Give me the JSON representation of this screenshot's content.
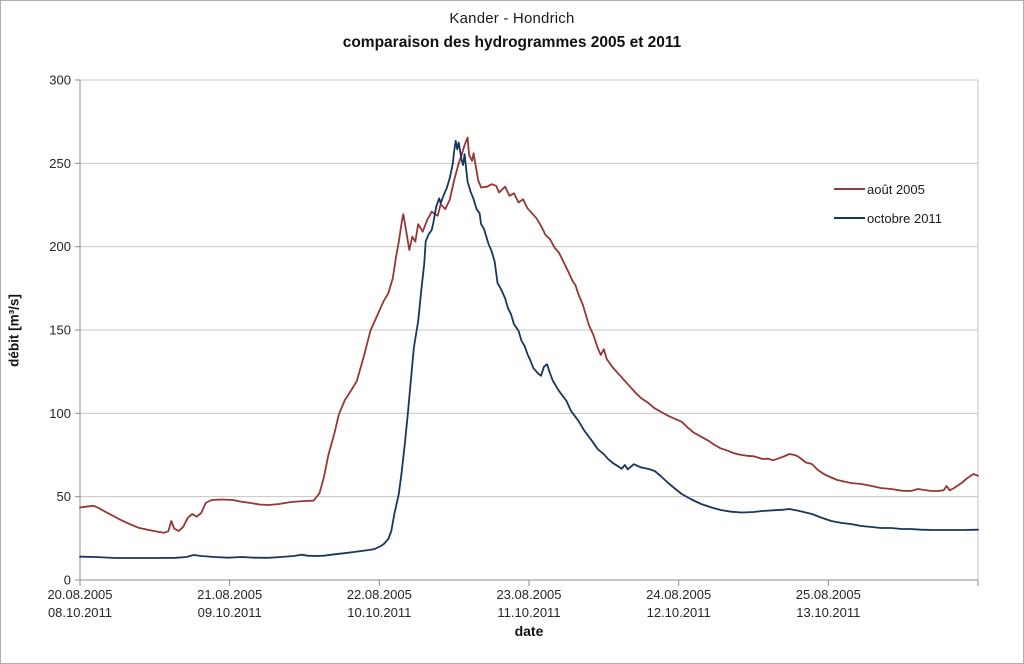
{
  "title": {
    "line1": "Kander - Hondrich",
    "line2": "comparaison des hydrogrammes 2005 et 2011"
  },
  "legend": {
    "position": "inside-right",
    "items": [
      {
        "label": "août 2005",
        "color": "#953735"
      },
      {
        "label": "octobre 2011",
        "color": "#17375D"
      }
    ]
  },
  "colors": {
    "gridline": "#c6c6c6",
    "axis": "#8c8c8c",
    "plot_border": "#c6c6c6",
    "text": "#262626",
    "background": "#ffffff",
    "series_red": "#953735",
    "series_blue": "#17375D"
  },
  "chart_data": {
    "type": "line",
    "title": "Kander - Hondrich",
    "subtitle": "comparaison des hydrogrammes 2005 et 2011",
    "xlabel": "date",
    "ylabel": "débit [m³/s]",
    "ylim": [
      0,
      300
    ],
    "yticks": [
      0,
      50,
      100,
      150,
      200,
      250,
      300
    ],
    "grid": "horizontal",
    "legend_position": "inside-right",
    "xlim_days": [
      0,
      6
    ],
    "x_unit": "days from first tick (dual date axis: 2005 over 2011)",
    "xticks": [
      {
        "day": 0,
        "label_2005": "20.08.2005",
        "label_2011": "08.10.2011"
      },
      {
        "day": 1,
        "label_2005": "21.08.2005",
        "label_2011": "09.10.2011"
      },
      {
        "day": 2,
        "label_2005": "22.08.2005",
        "label_2011": "10.10.2011"
      },
      {
        "day": 3,
        "label_2005": "23.08.2005",
        "label_2011": "11.10.2011"
      },
      {
        "day": 4,
        "label_2005": "24.08.2005",
        "label_2011": "12.10.2011"
      },
      {
        "day": 5,
        "label_2005": "25.08.2005",
        "label_2011": "13.10.2011"
      }
    ],
    "series": [
      {
        "name": "août 2005",
        "color": "#953735",
        "unit": "m³/s",
        "points": [
          [
            0.0,
            43.5
          ],
          [
            0.04,
            44.0
          ],
          [
            0.09,
            44.5
          ],
          [
            0.12,
            43.4
          ],
          [
            0.16,
            41.4
          ],
          [
            0.2,
            39.5
          ],
          [
            0.26,
            36.6
          ],
          [
            0.33,
            33.6
          ],
          [
            0.39,
            31.4
          ],
          [
            0.46,
            30.0
          ],
          [
            0.52,
            29.0
          ],
          [
            0.56,
            28.3
          ],
          [
            0.59,
            29.2
          ],
          [
            0.61,
            35.4
          ],
          [
            0.63,
            30.8
          ],
          [
            0.66,
            29.4
          ],
          [
            0.69,
            32.0
          ],
          [
            0.72,
            37.4
          ],
          [
            0.75,
            39.6
          ],
          [
            0.78,
            38.0
          ],
          [
            0.81,
            40.2
          ],
          [
            0.84,
            46.2
          ],
          [
            0.88,
            48.0
          ],
          [
            0.95,
            48.3
          ],
          [
            1.02,
            48.0
          ],
          [
            1.08,
            47.0
          ],
          [
            1.14,
            46.2
          ],
          [
            1.2,
            45.3
          ],
          [
            1.26,
            45.0
          ],
          [
            1.33,
            45.6
          ],
          [
            1.41,
            46.8
          ],
          [
            1.5,
            47.4
          ],
          [
            1.56,
            47.6
          ],
          [
            1.6,
            52.0
          ],
          [
            1.63,
            62.0
          ],
          [
            1.66,
            75.0
          ],
          [
            1.7,
            88.0
          ],
          [
            1.73,
            99.5
          ],
          [
            1.77,
            108.0
          ],
          [
            1.81,
            113.5
          ],
          [
            1.85,
            119.5
          ],
          [
            1.9,
            135.5
          ],
          [
            1.94,
            149.5
          ],
          [
            1.99,
            159.5
          ],
          [
            2.03,
            167.5
          ],
          [
            2.06,
            172.0
          ],
          [
            2.09,
            181.0
          ],
          [
            2.11,
            193.0
          ],
          [
            2.13,
            203.0
          ],
          [
            2.15,
            215.0
          ],
          [
            2.16,
            219.5
          ],
          [
            2.18,
            209.0
          ],
          [
            2.2,
            198.0
          ],
          [
            2.22,
            206.0
          ],
          [
            2.24,
            203.0
          ],
          [
            2.26,
            213.5
          ],
          [
            2.29,
            209.0
          ],
          [
            2.32,
            216.0
          ],
          [
            2.35,
            221.0
          ],
          [
            2.39,
            218.5
          ],
          [
            2.41,
            225.5
          ],
          [
            2.44,
            222.5
          ],
          [
            2.47,
            228.0
          ],
          [
            2.5,
            240.0
          ],
          [
            2.53,
            250.0
          ],
          [
            2.55,
            255.0
          ],
          [
            2.57,
            261.0
          ],
          [
            2.59,
            265.5
          ],
          [
            2.6,
            255.0
          ],
          [
            2.62,
            251.5
          ],
          [
            2.63,
            256.0
          ],
          [
            2.66,
            240.0
          ],
          [
            2.68,
            235.5
          ],
          [
            2.72,
            236.0
          ],
          [
            2.75,
            237.5
          ],
          [
            2.78,
            236.5
          ],
          [
            2.8,
            232.5
          ],
          [
            2.84,
            236.0
          ],
          [
            2.87,
            230.5
          ],
          [
            2.9,
            232.0
          ],
          [
            2.93,
            226.5
          ],
          [
            2.96,
            228.5
          ],
          [
            2.99,
            223.0
          ],
          [
            3.02,
            220.0
          ],
          [
            3.05,
            217.0
          ],
          [
            3.08,
            212.5
          ],
          [
            3.11,
            207.0
          ],
          [
            3.14,
            204.5
          ],
          [
            3.17,
            199.5
          ],
          [
            3.2,
            196.5
          ],
          [
            3.23,
            191.0
          ],
          [
            3.26,
            185.5
          ],
          [
            3.29,
            179.5
          ],
          [
            3.31,
            177.0
          ],
          [
            3.33,
            171.5
          ],
          [
            3.36,
            165.0
          ],
          [
            3.4,
            153.0
          ],
          [
            3.43,
            147.0
          ],
          [
            3.46,
            139.0
          ],
          [
            3.48,
            135.0
          ],
          [
            3.5,
            138.5
          ],
          [
            3.52,
            132.5
          ],
          [
            3.56,
            127.5
          ],
          [
            3.6,
            123.5
          ],
          [
            3.66,
            117.5
          ],
          [
            3.71,
            112.5
          ],
          [
            3.75,
            109.0
          ],
          [
            3.8,
            106.0
          ],
          [
            3.84,
            103.0
          ],
          [
            3.89,
            100.5
          ],
          [
            3.93,
            98.5
          ],
          [
            3.98,
            96.5
          ],
          [
            4.02,
            95.0
          ],
          [
            4.06,
            91.5
          ],
          [
            4.1,
            88.5
          ],
          [
            4.15,
            86.0
          ],
          [
            4.2,
            83.5
          ],
          [
            4.24,
            81.0
          ],
          [
            4.28,
            79.0
          ],
          [
            4.33,
            77.5
          ],
          [
            4.37,
            76.0
          ],
          [
            4.42,
            75.0
          ],
          [
            4.46,
            74.5
          ],
          [
            4.5,
            74.2
          ],
          [
            4.53,
            73.5
          ],
          [
            4.56,
            72.6
          ],
          [
            4.6,
            72.8
          ],
          [
            4.63,
            71.8
          ],
          [
            4.67,
            73.0
          ],
          [
            4.71,
            74.4
          ],
          [
            4.74,
            75.6
          ],
          [
            4.78,
            74.8
          ],
          [
            4.8,
            74.0
          ],
          [
            4.82,
            72.6
          ],
          [
            4.85,
            70.5
          ],
          [
            4.89,
            69.6
          ],
          [
            4.93,
            66.0
          ],
          [
            4.97,
            63.6
          ],
          [
            5.02,
            61.5
          ],
          [
            5.06,
            60.0
          ],
          [
            5.09,
            59.4
          ],
          [
            5.15,
            58.2
          ],
          [
            5.22,
            57.6
          ],
          [
            5.29,
            56.4
          ],
          [
            5.35,
            55.2
          ],
          [
            5.42,
            54.6
          ],
          [
            5.49,
            53.6
          ],
          [
            5.55,
            53.4
          ],
          [
            5.6,
            54.6
          ],
          [
            5.64,
            54.0
          ],
          [
            5.69,
            53.4
          ],
          [
            5.73,
            53.4
          ],
          [
            5.77,
            53.8
          ],
          [
            5.79,
            56.4
          ],
          [
            5.81,
            53.8
          ],
          [
            5.84,
            55.2
          ],
          [
            5.89,
            58.2
          ],
          [
            5.93,
            61.2
          ],
          [
            5.97,
            63.6
          ],
          [
            6.0,
            62.5
          ]
        ]
      },
      {
        "name": "octobre 2011",
        "color": "#17375D",
        "unit": "m³/s",
        "points": [
          [
            0.0,
            14.0
          ],
          [
            0.1,
            13.8
          ],
          [
            0.24,
            13.2
          ],
          [
            0.37,
            13.2
          ],
          [
            0.51,
            13.2
          ],
          [
            0.64,
            13.3
          ],
          [
            0.71,
            13.8
          ],
          [
            0.76,
            15.0
          ],
          [
            0.81,
            14.4
          ],
          [
            0.9,
            13.8
          ],
          [
            0.99,
            13.4
          ],
          [
            1.08,
            13.8
          ],
          [
            1.16,
            13.4
          ],
          [
            1.26,
            13.3
          ],
          [
            1.34,
            13.8
          ],
          [
            1.43,
            14.4
          ],
          [
            1.48,
            15.2
          ],
          [
            1.52,
            14.6
          ],
          [
            1.58,
            14.4
          ],
          [
            1.63,
            14.6
          ],
          [
            1.7,
            15.4
          ],
          [
            1.76,
            16.0
          ],
          [
            1.83,
            16.8
          ],
          [
            1.88,
            17.4
          ],
          [
            1.93,
            18.0
          ],
          [
            1.97,
            18.6
          ],
          [
            2.01,
            20.4
          ],
          [
            2.03,
            21.6
          ],
          [
            2.06,
            24.6
          ],
          [
            2.08,
            29.4
          ],
          [
            2.1,
            39.5
          ],
          [
            2.13,
            51.6
          ],
          [
            2.15,
            65.4
          ],
          [
            2.17,
            81.6
          ],
          [
            2.19,
            99.6
          ],
          [
            2.21,
            119.4
          ],
          [
            2.23,
            139.2
          ],
          [
            2.26,
            155.4
          ],
          [
            2.28,
            173.4
          ],
          [
            2.3,
            189.5
          ],
          [
            2.31,
            203.3
          ],
          [
            2.33,
            207.5
          ],
          [
            2.35,
            210.0
          ],
          [
            2.36,
            214.0
          ],
          [
            2.38,
            224.0
          ],
          [
            2.4,
            229.0
          ],
          [
            2.41,
            226.0
          ],
          [
            2.43,
            231.0
          ],
          [
            2.45,
            235.0
          ],
          [
            2.47,
            241.0
          ],
          [
            2.49,
            249.5
          ],
          [
            2.5,
            257.5
          ],
          [
            2.51,
            263.5
          ],
          [
            2.52,
            258.5
          ],
          [
            2.53,
            262.5
          ],
          [
            2.55,
            252.0
          ],
          [
            2.56,
            249.0
          ],
          [
            2.57,
            255.5
          ],
          [
            2.59,
            239.0
          ],
          [
            2.61,
            233.0
          ],
          [
            2.63,
            228.5
          ],
          [
            2.65,
            222.5
          ],
          [
            2.67,
            220.0
          ],
          [
            2.68,
            213.5
          ],
          [
            2.7,
            210.5
          ],
          [
            2.73,
            201.5
          ],
          [
            2.75,
            197.3
          ],
          [
            2.77,
            191.3
          ],
          [
            2.79,
            178.0
          ],
          [
            2.81,
            175.0
          ],
          [
            2.84,
            169.0
          ],
          [
            2.86,
            163.0
          ],
          [
            2.88,
            159.5
          ],
          [
            2.9,
            153.5
          ],
          [
            2.93,
            149.5
          ],
          [
            2.95,
            143.5
          ],
          [
            2.97,
            140.5
          ],
          [
            2.99,
            135.5
          ],
          [
            3.01,
            131.5
          ],
          [
            3.03,
            127.0
          ],
          [
            3.06,
            124.0
          ],
          [
            3.08,
            122.5
          ],
          [
            3.1,
            128.0
          ],
          [
            3.12,
            129.5
          ],
          [
            3.14,
            124.0
          ],
          [
            3.16,
            119.5
          ],
          [
            3.2,
            113.5
          ],
          [
            3.25,
            107.5
          ],
          [
            3.28,
            101.5
          ],
          [
            3.33,
            95.5
          ],
          [
            3.37,
            89.5
          ],
          [
            3.42,
            83.5
          ],
          [
            3.46,
            78.5
          ],
          [
            3.5,
            75.5
          ],
          [
            3.53,
            72.5
          ],
          [
            3.56,
            70.2
          ],
          [
            3.59,
            68.5
          ],
          [
            3.62,
            66.8
          ],
          [
            3.64,
            69.0
          ],
          [
            3.66,
            66.4
          ],
          [
            3.7,
            69.5
          ],
          [
            3.75,
            67.5
          ],
          [
            3.8,
            66.6
          ],
          [
            3.84,
            65.4
          ],
          [
            3.88,
            62.4
          ],
          [
            3.93,
            58.2
          ],
          [
            3.97,
            55.2
          ],
          [
            4.02,
            51.6
          ],
          [
            4.08,
            48.6
          ],
          [
            4.15,
            45.6
          ],
          [
            4.22,
            43.5
          ],
          [
            4.28,
            42.0
          ],
          [
            4.35,
            41.0
          ],
          [
            4.42,
            40.5
          ],
          [
            4.5,
            40.8
          ],
          [
            4.56,
            41.4
          ],
          [
            4.63,
            41.8
          ],
          [
            4.7,
            42.2
          ],
          [
            4.74,
            42.6
          ],
          [
            4.8,
            41.6
          ],
          [
            4.89,
            39.6
          ],
          [
            4.95,
            37.5
          ],
          [
            5.02,
            35.4
          ],
          [
            5.09,
            34.2
          ],
          [
            5.15,
            33.6
          ],
          [
            5.22,
            32.4
          ],
          [
            5.29,
            31.8
          ],
          [
            5.35,
            31.2
          ],
          [
            5.42,
            31.2
          ],
          [
            5.49,
            30.6
          ],
          [
            5.55,
            30.6
          ],
          [
            5.62,
            30.2
          ],
          [
            5.7,
            30.0
          ],
          [
            5.8,
            30.0
          ],
          [
            5.9,
            30.0
          ],
          [
            6.0,
            30.2
          ]
        ]
      }
    ]
  }
}
